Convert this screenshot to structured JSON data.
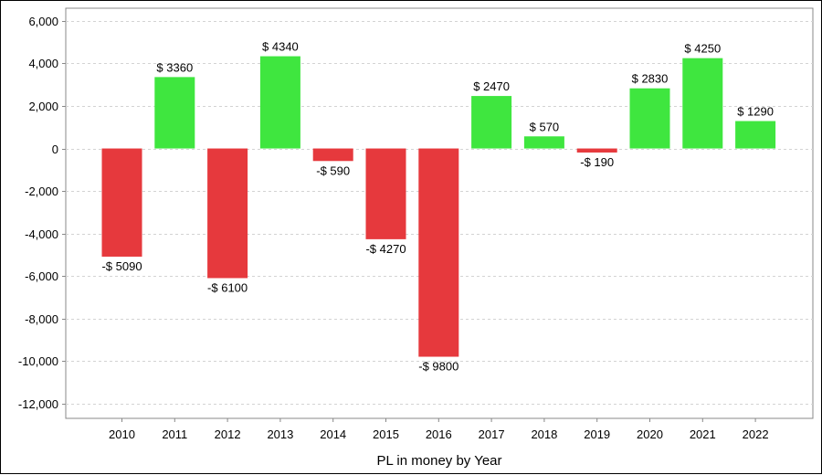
{
  "chart_data": {
    "type": "bar",
    "title": "",
    "xlabel": "PL in money by Year",
    "ylabel": "",
    "categories": [
      "2010",
      "2011",
      "2012",
      "2013",
      "2014",
      "2015",
      "2016",
      "2017",
      "2018",
      "2019",
      "2020",
      "2021",
      "2022"
    ],
    "values": [
      -5090,
      3360,
      -6100,
      4340,
      -590,
      -4270,
      -9800,
      2470,
      570,
      -190,
      2830,
      4250,
      1290
    ],
    "data_labels": [
      "-$ 5090",
      "$ 3360",
      "-$ 6100",
      "$ 4340",
      "-$ 590",
      "-$ 4270",
      "-$ 9800",
      "$ 2470",
      "$ 570",
      "-$ 190",
      "$ 2830",
      "$ 4250",
      "$ 1290"
    ],
    "y_ticks": [
      6000,
      4000,
      2000,
      0,
      -2000,
      -4000,
      -6000,
      -8000,
      -10000,
      -12000
    ],
    "y_tick_labels": [
      "6,000",
      "4,000",
      "2,000",
      "0",
      "-2,000",
      "-4,000",
      "-6,000",
      "-8,000",
      "-10,000",
      "-12,000"
    ],
    "ylim": [
      -12700,
      6600
    ],
    "grid": true,
    "legend": "none",
    "colors": {
      "positive": "#3FE63F",
      "negative": "#E6393D",
      "grid": "#D3D3D3",
      "axis": "#888888"
    }
  }
}
